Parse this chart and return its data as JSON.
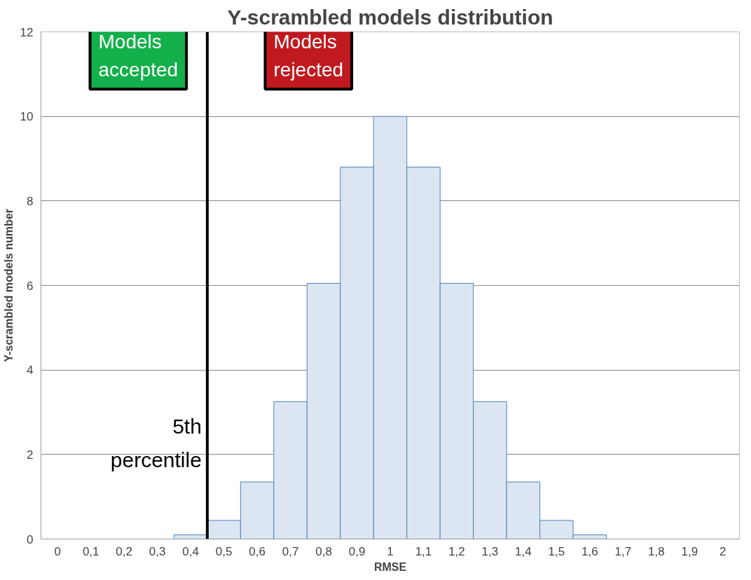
{
  "chart_data": {
    "type": "bar",
    "title": "Y-scrambled models distribution",
    "xlabel": "RMSE",
    "ylabel": "Y-scrambled models number",
    "x": [
      0,
      0.1,
      0.2,
      0.3,
      0.4,
      0.5,
      0.6,
      0.7,
      0.8,
      0.9,
      1,
      1.1,
      1.2,
      1.3,
      1.4,
      1.5,
      1.6,
      1.7,
      1.8,
      1.9,
      2
    ],
    "values": [
      0,
      0,
      0,
      0,
      0.1,
      0.44,
      1.35,
      3.25,
      6.05,
      8.8,
      10,
      8.8,
      6.05,
      3.25,
      1.35,
      0.44,
      0.1,
      0,
      0,
      0,
      0
    ],
    "color": "#dce6f2",
    "xlim": [
      -0.05,
      2.05
    ],
    "xticks": [
      {
        "value": 0,
        "label": "0"
      },
      {
        "value": 0.1,
        "label": "0,1"
      },
      {
        "value": 0.2,
        "label": "0,2"
      },
      {
        "value": 0.3,
        "label": "0,3"
      },
      {
        "value": 0.4,
        "label": "0,4"
      },
      {
        "value": 0.5,
        "label": "0,5"
      },
      {
        "value": 0.6,
        "label": "0,6"
      },
      {
        "value": 0.7,
        "label": "0,7"
      },
      {
        "value": 0.8,
        "label": "0,8"
      },
      {
        "value": 0.9,
        "label": "0,9"
      },
      {
        "value": 1,
        "label": "1"
      },
      {
        "value": 1.1,
        "label": "1,1"
      },
      {
        "value": 1.2,
        "label": "1,2"
      },
      {
        "value": 1.3,
        "label": "1,3"
      },
      {
        "value": 1.4,
        "label": "1,4"
      },
      {
        "value": 1.5,
        "label": "1,5"
      },
      {
        "value": 1.6,
        "label": "1,6"
      },
      {
        "value": 1.7,
        "label": "1,7"
      },
      {
        "value": 1.8,
        "label": "1,8"
      },
      {
        "value": 1.9,
        "label": "1,9"
      },
      {
        "value": 2,
        "label": "2"
      }
    ],
    "ylim": [
      0,
      12
    ],
    "yticks": [
      0,
      2,
      4,
      6,
      8,
      10,
      12
    ],
    "grid": "y",
    "ref_lines": [
      {
        "axis": "x",
        "value": 0.45,
        "label": "5th percentile",
        "color": "#000000"
      }
    ],
    "annotations": [
      "Models accepted",
      "Models rejected"
    ]
  }
}
